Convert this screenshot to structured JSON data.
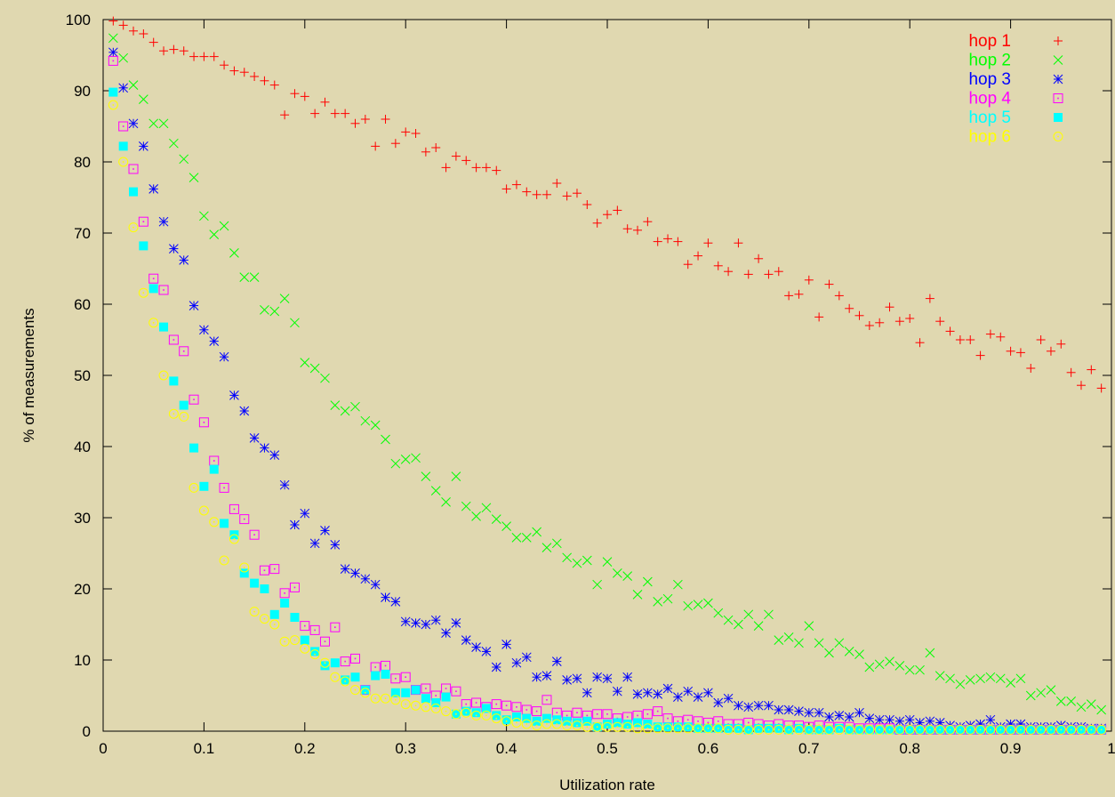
{
  "chart_data": {
    "type": "scatter",
    "title": "",
    "xlabel": "Utilization rate",
    "ylabel": "% of measurements",
    "xlim": [
      0,
      1
    ],
    "ylim": [
      0,
      100
    ],
    "xticks": [
      "0",
      "0.1",
      "0.2",
      "0.3",
      "0.4",
      "0.5",
      "0.6",
      "0.7",
      "0.8",
      "0.9",
      "1"
    ],
    "yticks": [
      "0",
      "10",
      "20",
      "30",
      "40",
      "50",
      "60",
      "70",
      "80",
      "90",
      "100"
    ],
    "grid": false,
    "legend_position": "top-right",
    "background": "#e0d8b0",
    "x": [
      0.01,
      0.02,
      0.03,
      0.04,
      0.05,
      0.06,
      0.07,
      0.08,
      0.09,
      0.1,
      0.11,
      0.12,
      0.13,
      0.14,
      0.15,
      0.16,
      0.17,
      0.18,
      0.19,
      0.2,
      0.21,
      0.22,
      0.23,
      0.24,
      0.25,
      0.26,
      0.27,
      0.28,
      0.29,
      0.3,
      0.31,
      0.32,
      0.33,
      0.34,
      0.35,
      0.36,
      0.37,
      0.38,
      0.39,
      0.4,
      0.41,
      0.42,
      0.43,
      0.44,
      0.45,
      0.46,
      0.47,
      0.48,
      0.49,
      0.5,
      0.51,
      0.52,
      0.53,
      0.54,
      0.55,
      0.56,
      0.57,
      0.58,
      0.59,
      0.6,
      0.61,
      0.62,
      0.63,
      0.64,
      0.65,
      0.66,
      0.67,
      0.68,
      0.69,
      0.7,
      0.71,
      0.72,
      0.73,
      0.74,
      0.75,
      0.76,
      0.77,
      0.78,
      0.79,
      0.8,
      0.81,
      0.82,
      0.83,
      0.84,
      0.85,
      0.86,
      0.87,
      0.88,
      0.89,
      0.9,
      0.91,
      0.92,
      0.93,
      0.94,
      0.95,
      0.96,
      0.97,
      0.98,
      0.99
    ],
    "series": [
      {
        "name": "hop 1",
        "color": "#ff0000",
        "marker": "plus",
        "values": [
          99.8,
          99.2,
          98.4,
          98.0,
          96.8,
          95.6,
          95.8,
          95.6,
          94.8,
          94.8,
          94.8,
          93.6,
          92.8,
          92.6,
          92.0,
          91.4,
          90.8,
          86.6,
          89.6,
          89.2,
          86.8,
          88.4,
          86.8,
          86.8,
          85.4,
          86.0,
          82.2,
          86.0,
          82.6,
          84.2,
          84.0,
          81.4,
          82.0,
          79.2,
          80.8,
          80.2,
          79.2,
          79.2,
          78.8,
          76.2,
          76.8,
          75.8,
          75.4,
          75.4,
          77.0,
          75.2,
          75.6,
          74.0,
          71.4,
          72.6,
          73.2,
          70.6,
          70.4,
          71.6,
          68.8,
          69.2,
          68.8,
          65.6,
          66.8,
          68.6,
          65.4,
          64.6,
          68.6,
          64.2,
          66.4,
          64.2,
          64.6,
          61.2,
          61.4,
          63.4,
          58.2,
          62.8,
          61.2,
          59.4,
          58.4,
          57.0,
          57.4,
          59.6,
          57.6,
          58.0,
          54.6,
          60.8,
          57.6,
          56.2,
          55.0,
          55.0,
          52.8,
          55.8,
          55.4,
          53.4,
          53.2,
          51.0,
          55.0,
          53.4,
          54.4,
          50.4,
          48.6,
          50.8,
          48.2
        ]
      },
      {
        "name": "hop 2",
        "color": "#00ff00",
        "marker": "cross",
        "values": [
          97.4,
          94.6,
          90.8,
          88.8,
          85.4,
          85.4,
          82.6,
          80.4,
          77.8,
          72.4,
          69.8,
          71.0,
          67.2,
          63.8,
          63.8,
          59.2,
          59.0,
          60.8,
          57.4,
          51.8,
          51.0,
          49.6,
          45.8,
          45.0,
          45.6,
          43.6,
          43.0,
          41.0,
          37.6,
          38.2,
          38.4,
          35.8,
          33.8,
          32.2,
          35.8,
          31.6,
          30.2,
          31.4,
          29.8,
          28.8,
          27.2,
          27.2,
          28.0,
          25.8,
          26.4,
          24.4,
          23.6,
          24.0,
          20.6,
          23.8,
          22.2,
          21.8,
          19.2,
          21.0,
          18.2,
          18.6,
          20.6,
          17.6,
          17.8,
          18.0,
          16.6,
          15.6,
          15.0,
          16.4,
          14.8,
          16.4,
          12.8,
          13.2,
          12.4,
          14.8,
          12.4,
          11.0,
          12.4,
          11.2,
          10.8,
          9.0,
          9.4,
          9.8,
          9.2,
          8.6,
          8.6,
          11.0,
          7.8,
          7.4,
          6.6,
          7.2,
          7.4,
          7.6,
          7.4,
          6.8,
          7.4,
          5.0,
          5.4,
          5.8,
          4.2,
          4.2,
          3.4,
          3.8,
          3.0
        ]
      },
      {
        "name": "hop 3",
        "color": "#0000ff",
        "marker": "star",
        "values": [
          95.4,
          90.4,
          85.4,
          82.2,
          76.2,
          71.6,
          67.8,
          66.2,
          59.8,
          56.4,
          54.8,
          52.6,
          47.2,
          45.0,
          41.2,
          39.8,
          38.8,
          34.6,
          29.0,
          30.6,
          26.4,
          28.2,
          26.2,
          22.8,
          22.2,
          21.4,
          20.6,
          18.8,
          18.2,
          15.4,
          15.2,
          15.0,
          15.6,
          13.8,
          15.2,
          12.8,
          11.8,
          11.2,
          9.0,
          12.2,
          9.6,
          10.4,
          7.6,
          7.8,
          9.8,
          7.2,
          7.4,
          5.4,
          7.6,
          7.4,
          5.6,
          7.6,
          5.2,
          5.4,
          5.2,
          6.0,
          4.8,
          5.6,
          4.8,
          5.4,
          4.0,
          4.6,
          3.6,
          3.4,
          3.6,
          3.6,
          3.0,
          3.0,
          2.8,
          2.6,
          2.6,
          2.0,
          2.2,
          2.0,
          2.6,
          1.8,
          1.6,
          1.6,
          1.4,
          1.6,
          1.2,
          1.4,
          1.2,
          0.8,
          0.6,
          0.8,
          1.0,
          1.6,
          0.6,
          1.0,
          1.0,
          0.6,
          0.6,
          0.6,
          0.8,
          0.6,
          0.6,
          0.4,
          0.4
        ]
      },
      {
        "name": "hop 4",
        "color": "#ff00ff",
        "marker": "square-open",
        "values": [
          94.2,
          85.0,
          79.0,
          71.6,
          63.6,
          62.0,
          55.0,
          53.4,
          46.6,
          43.4,
          38.0,
          34.2,
          31.2,
          29.8,
          27.6,
          22.6,
          22.8,
          19.4,
          20.2,
          14.8,
          14.2,
          12.6,
          14.6,
          9.8,
          10.2,
          5.8,
          9.0,
          9.2,
          7.4,
          7.6,
          5.8,
          6.0,
          5.0,
          6.0,
          5.6,
          3.8,
          4.0,
          3.4,
          3.8,
          3.6,
          3.4,
          3.0,
          2.8,
          4.4,
          2.6,
          2.2,
          2.6,
          2.2,
          2.4,
          2.4,
          1.8,
          2.0,
          2.2,
          2.4,
          2.8,
          1.8,
          1.4,
          1.6,
          1.4,
          1.2,
          1.4,
          1.0,
          1.0,
          1.2,
          1.0,
          0.8,
          1.0,
          0.8,
          0.8,
          0.6,
          0.8,
          0.6,
          0.6,
          0.6,
          0.4,
          0.4,
          0.4,
          0.4,
          0.2,
          0.2,
          0.2,
          0.2,
          0.2,
          0.2,
          0.2,
          0.2,
          0.2,
          0.2,
          0.2,
          0.2,
          0.2,
          0.2,
          0.2,
          0.2,
          0.2,
          0.2,
          0.2,
          0.2,
          0.2
        ]
      },
      {
        "name": "hop 5",
        "color": "#00ffff",
        "marker": "square-filled",
        "values": [
          89.8,
          82.2,
          75.8,
          68.2,
          62.2,
          56.8,
          49.2,
          45.8,
          39.8,
          34.4,
          36.8,
          29.2,
          27.6,
          22.2,
          20.8,
          20.0,
          16.4,
          18.0,
          16.0,
          12.8,
          11.2,
          9.2,
          9.6,
          7.2,
          7.6,
          5.8,
          7.8,
          8.0,
          5.4,
          5.4,
          5.8,
          4.6,
          4.0,
          4.8,
          2.4,
          2.8,
          2.6,
          3.2,
          2.2,
          1.6,
          2.0,
          1.8,
          1.4,
          1.8,
          1.6,
          1.4,
          1.2,
          1.4,
          0.6,
          1.0,
          1.2,
          1.0,
          1.2,
          1.0,
          0.6,
          0.6,
          0.6,
          0.6,
          0.4,
          0.4,
          0.4,
          0.4,
          0.4,
          0.2,
          0.4,
          0.4,
          0.4,
          0.2,
          0.4,
          0.2,
          0.2,
          0.2,
          0.4,
          0.2,
          0.2,
          0.2,
          0.2,
          0.2,
          0.2,
          0.2,
          0.2,
          0.2,
          0.2,
          0.2,
          0.2,
          0.2,
          0.2,
          0.2,
          0.2,
          0.2,
          0.2,
          0.2,
          0.2,
          0.2,
          0.2,
          0.2,
          0.2,
          0.2,
          0.2
        ]
      },
      {
        "name": "hop 6",
        "color": "#ffff00",
        "marker": "circle-open",
        "values": [
          88.0,
          80.0,
          70.8,
          61.6,
          57.4,
          50.0,
          44.6,
          44.2,
          34.2,
          31.0,
          29.4,
          24.0,
          27.0,
          23.0,
          16.8,
          15.8,
          15.0,
          12.6,
          12.8,
          11.6,
          10.8,
          9.6,
          7.6,
          7.0,
          5.8,
          5.4,
          4.6,
          4.6,
          4.4,
          3.8,
          3.6,
          3.4,
          3.2,
          2.8,
          2.4,
          2.6,
          2.2,
          2.2,
          1.8,
          1.4,
          1.2,
          1.0,
          0.8,
          1.0,
          1.0,
          0.8,
          0.8,
          0.6,
          0.6,
          0.6,
          0.6,
          0.6,
          0.4,
          0.4,
          0.4,
          0.4,
          0.4,
          0.4,
          0.4,
          0.4,
          0.4,
          0.2,
          0.2,
          0.2,
          0.2,
          0.2,
          0.2,
          0.2,
          0.2,
          0.2,
          0.2,
          0.2,
          0.2,
          0.2,
          0.2,
          0.2,
          0.2,
          0.2,
          0.2,
          0.2,
          0.2,
          0.2,
          0.2,
          0.2,
          0.2,
          0.2,
          0.2,
          0.2,
          0.2,
          0.2,
          0.2,
          0.2,
          0.2,
          0.2,
          0.2,
          0.2,
          0.2,
          0.2,
          0.2
        ]
      }
    ]
  }
}
